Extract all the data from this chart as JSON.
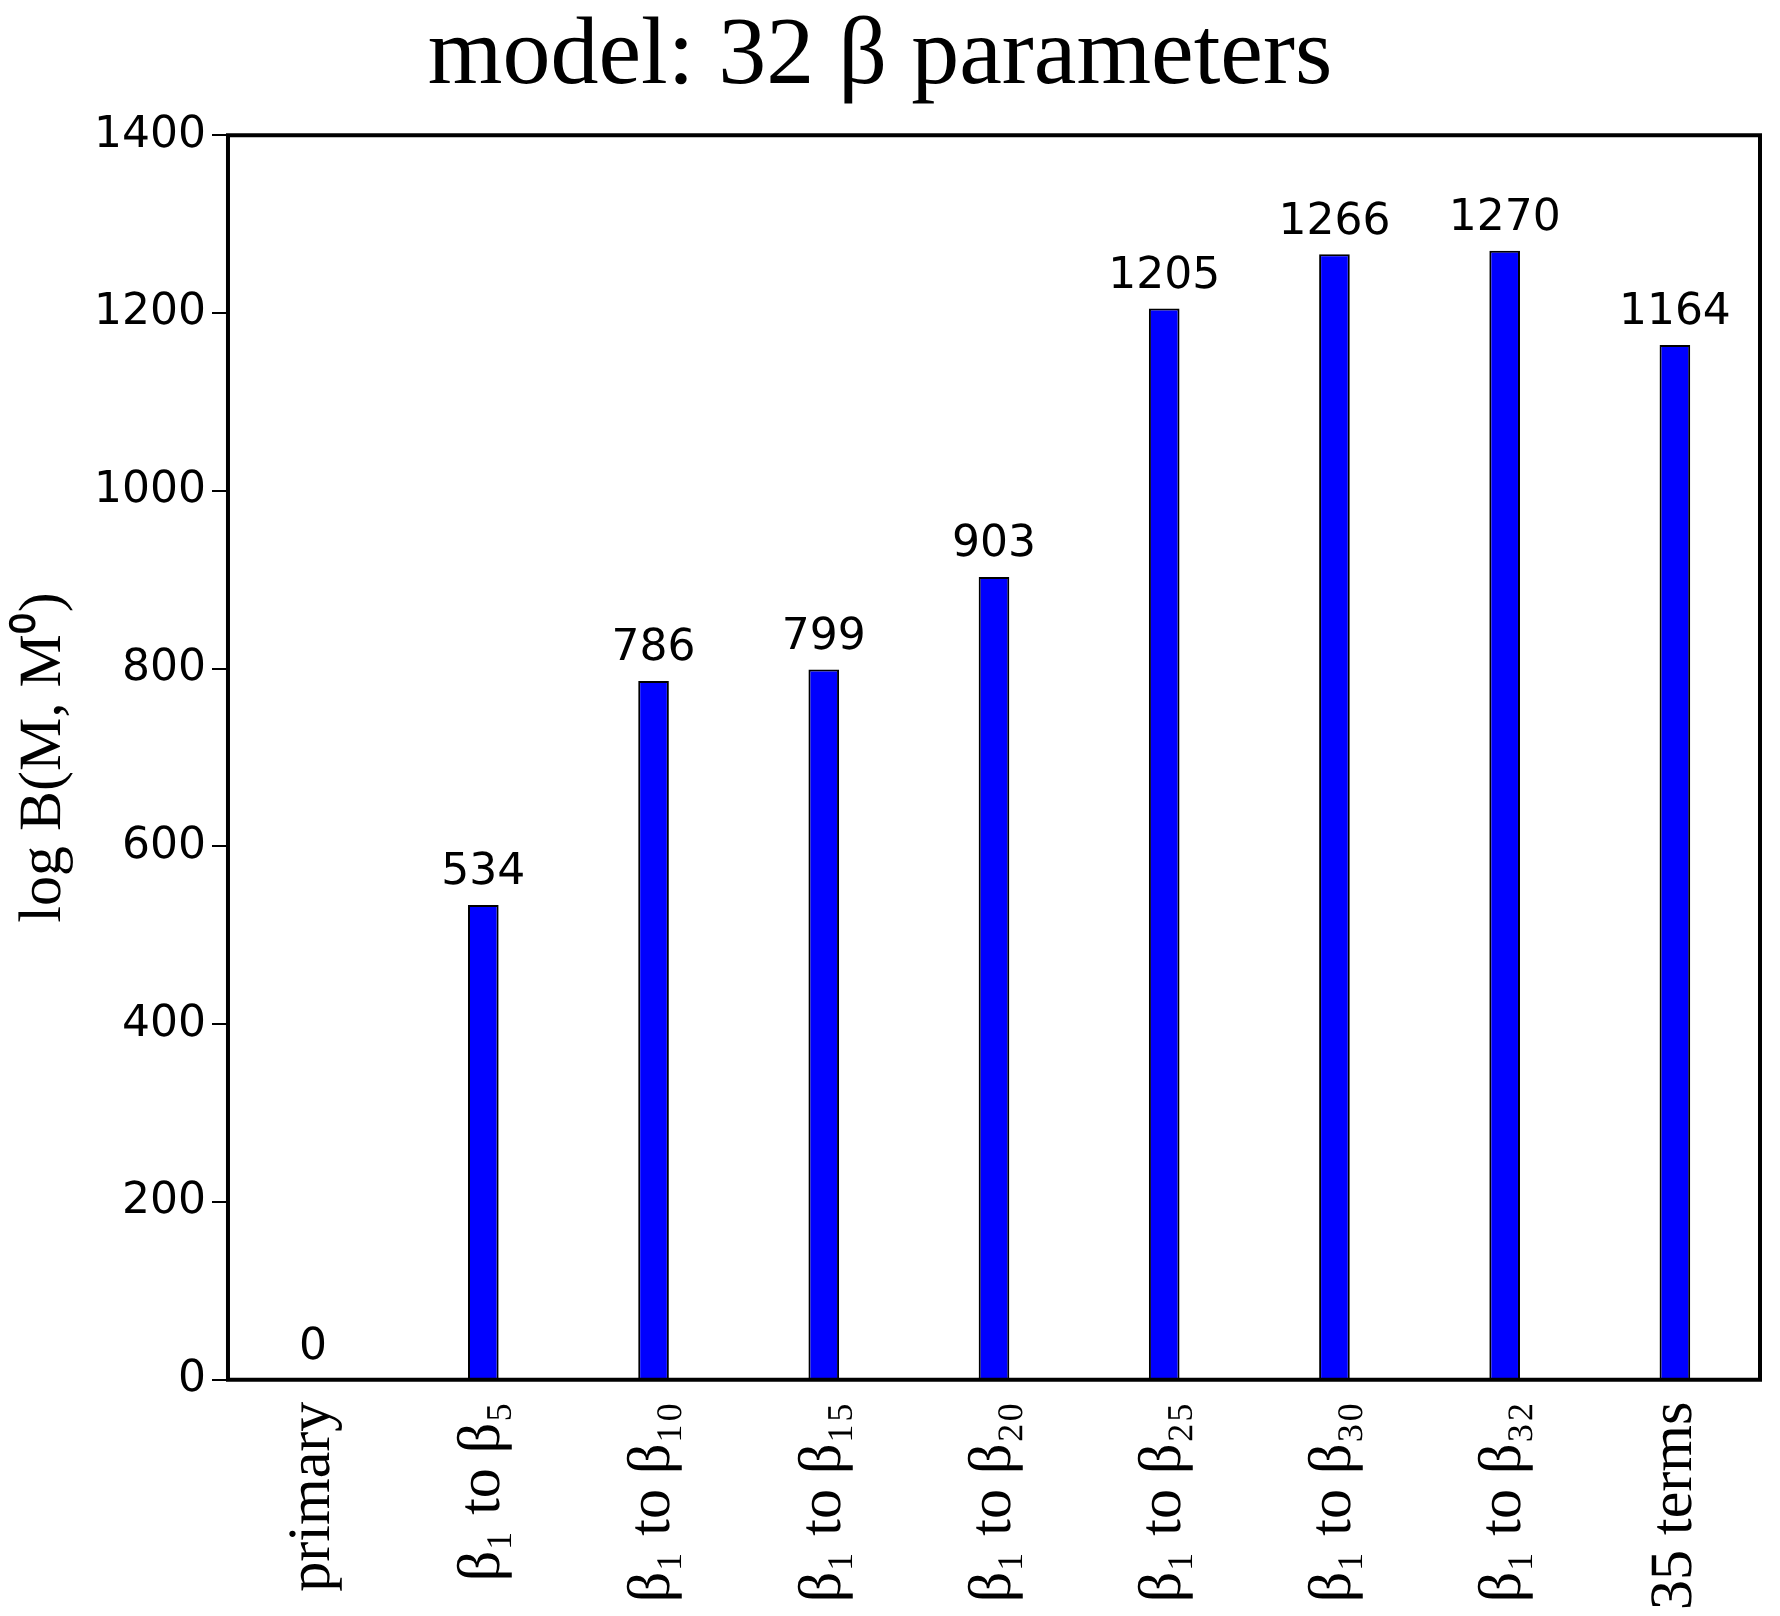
{
  "chart_data": {
    "type": "bar",
    "title": "model: 32 β parameters",
    "ylabel": "log B(M, M⁰)",
    "categories": [
      "primary",
      "β₁ to β₅",
      "β₁ to β₁₀",
      "β₁ to β₁₅",
      "β₁ to β₂₀",
      "β₁ to β₂₅",
      "β₁ to β₃₀",
      "β₁ to β₃₂",
      "35 terms"
    ],
    "values": [
      0,
      534,
      786,
      799,
      903,
      1205,
      1266,
      1270,
      1164
    ],
    "color": "#0000ff",
    "ylim": [
      0,
      1400
    ],
    "yticks": [
      0,
      200,
      400,
      600,
      800,
      1000,
      1200,
      1400
    ],
    "grid": false,
    "data_labels": true,
    "legend": false
  }
}
